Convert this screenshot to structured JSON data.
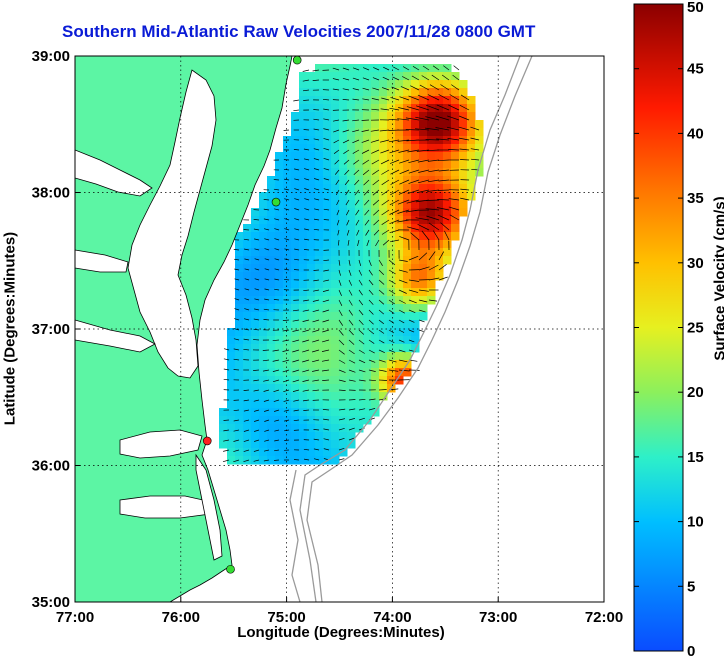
{
  "title": "Southern Mid-Atlantic Raw Velocities 2007/11/28 0800 GMT",
  "xlabel": "Longitude (Degrees:Minutes)",
  "ylabel": "Latitude (Degrees:Minutes)",
  "colorbar": {
    "label": "Surface Velocity (cm/s)",
    "ticks": [
      "0",
      "5",
      "10",
      "15",
      "20",
      "25",
      "30",
      "35",
      "40",
      "45",
      "50"
    ],
    "range": [
      0,
      50
    ]
  },
  "axes": {
    "x_ticks": [
      "77:00",
      "76:00",
      "75:00",
      "74:00",
      "73:00",
      "72:00"
    ],
    "y_ticks": [
      "39:00",
      "38:00",
      "37:00",
      "36:00",
      "35:00"
    ],
    "lon_range": [
      -77,
      -72
    ],
    "lat_range": [
      35,
      39
    ],
    "grid": "dotted"
  },
  "colors": {
    "land": "#5cf5a4",
    "title": "#0a1bd6",
    "bathymetry": "#9a9a9a",
    "station_green": "#33dd33",
    "station_red": "#ff2020"
  },
  "stations": [
    {
      "lon": -74.9,
      "lat": 38.97,
      "color": "green"
    },
    {
      "lon": -75.1,
      "lat": 37.93,
      "color": "green"
    },
    {
      "lon": -75.75,
      "lat": 36.18,
      "color": "red"
    },
    {
      "lon": -75.53,
      "lat": 35.24,
      "color": "green"
    }
  ]
}
